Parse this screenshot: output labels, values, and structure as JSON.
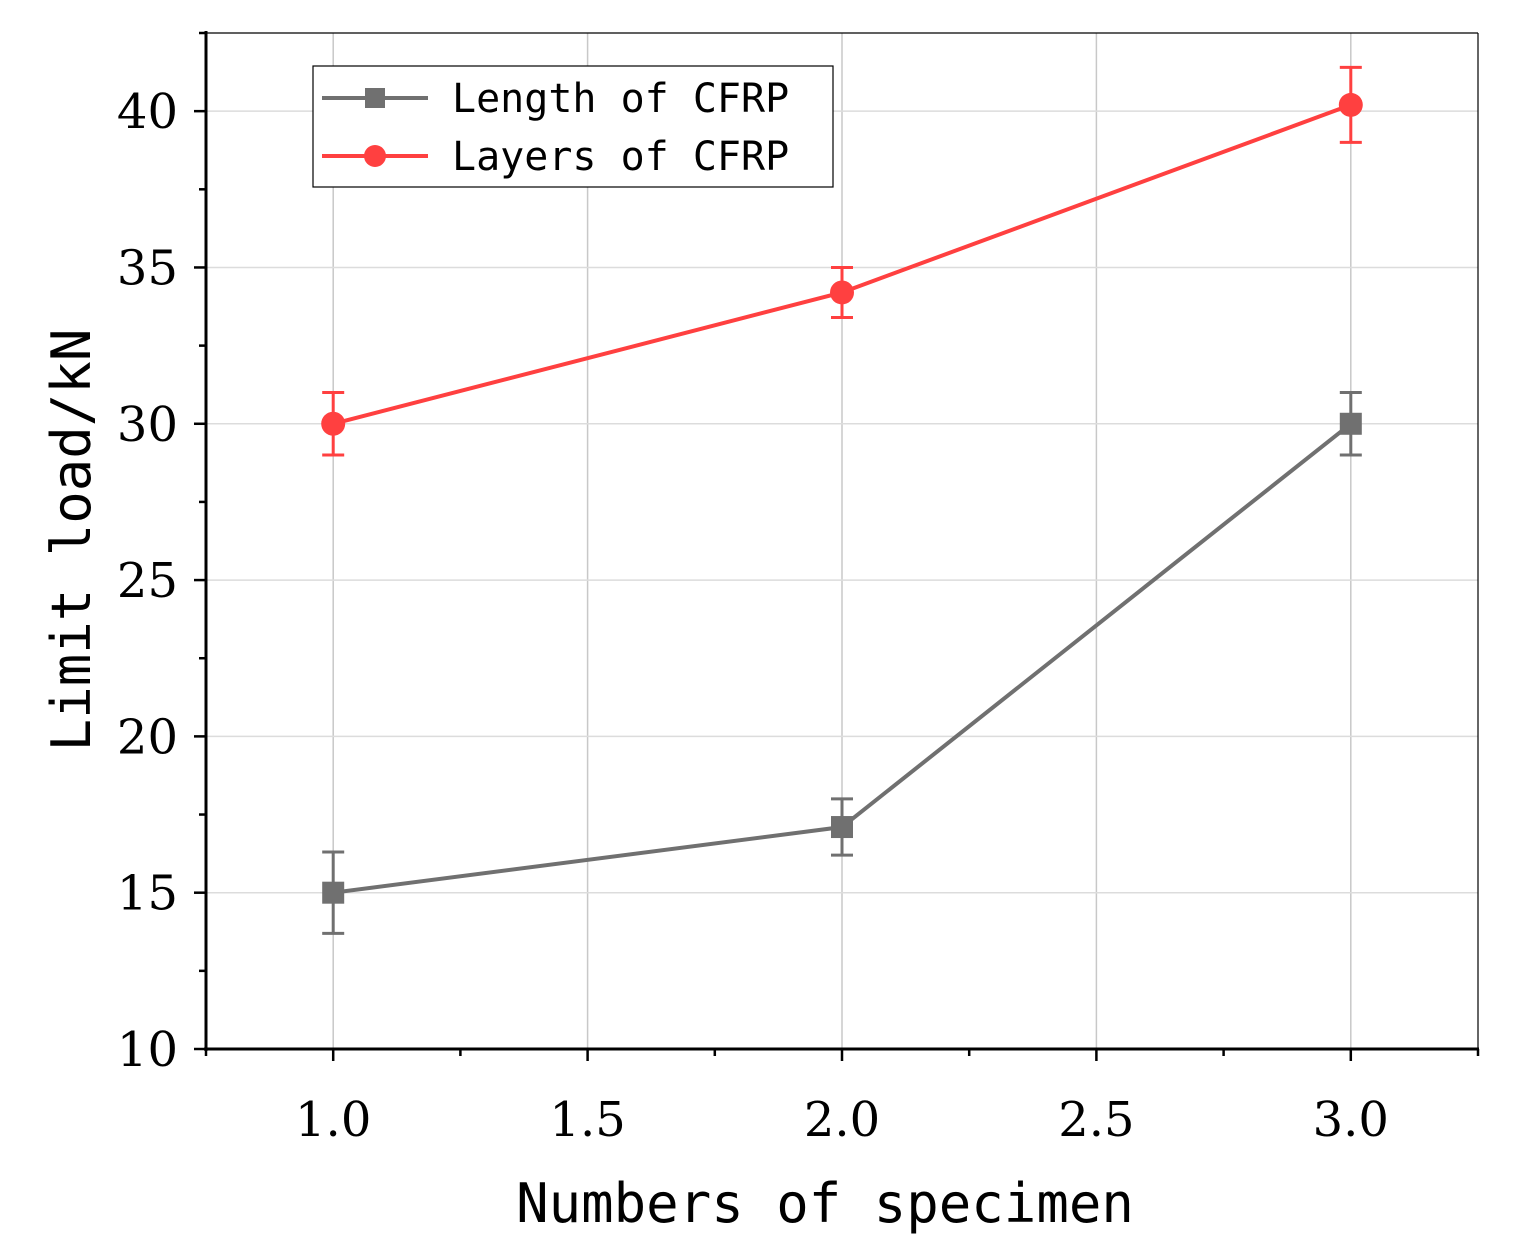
{
  "chart_data": {
    "type": "line",
    "title": "",
    "xlabel": "Numbers of specimen",
    "ylabel": "Limit load/kN",
    "xlim": [
      0.75,
      3.25
    ],
    "ylim": [
      10,
      42.5
    ],
    "xticks": [
      "1.0",
      "1.5",
      "2.0",
      "2.5",
      "3.0"
    ],
    "xtick_values": [
      1.0,
      1.5,
      2.0,
      2.5,
      3.0
    ],
    "yticks": [
      "10",
      "15",
      "20",
      "25",
      "30",
      "35",
      "40"
    ],
    "ytick_values": [
      10,
      15,
      20,
      25,
      30,
      35,
      40
    ],
    "grid": true,
    "legend_position": "top-left",
    "series": [
      {
        "name": "Length of CFRP",
        "color": "#707070",
        "marker": "square",
        "x": [
          1.0,
          2.0,
          3.0
        ],
        "values": [
          15.0,
          17.1,
          30.0
        ],
        "error": [
          1.3,
          0.9,
          1.0
        ]
      },
      {
        "name": "Layers of CFRP",
        "color": "#ff4040",
        "marker": "circle",
        "x": [
          1.0,
          2.0,
          3.0
        ],
        "values": [
          30.0,
          34.2,
          40.2
        ],
        "error": [
          1.0,
          0.8,
          1.2
        ]
      }
    ]
  }
}
